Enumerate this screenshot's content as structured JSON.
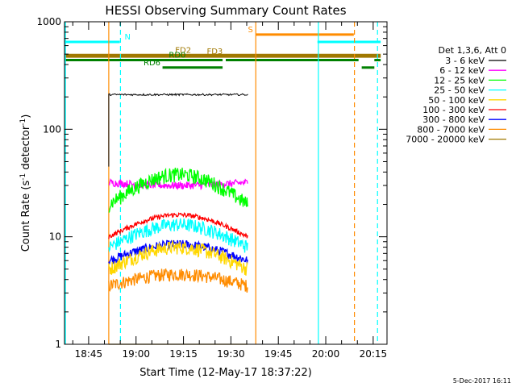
{
  "chart_data": {
    "type": "line",
    "title": "HESSI Observing Summary Count Rates",
    "xlabel": "Start Time (12-May-17 18:37:22)",
    "ylabel_main": "Count Rate (s",
    "ylabel_sup1": "-1",
    "ylabel_mid": " detector",
    "ylabel_sup2": "-1",
    "ylabel_end": ")",
    "y_scale": "log",
    "ylim": [
      1,
      1000
    ],
    "xlim_minutes": [
      0,
      102
    ],
    "x_ticks": [
      {
        "label": "18:45",
        "min": 7.63
      },
      {
        "label": "19:00",
        "min": 22.63
      },
      {
        "label": "19:15",
        "min": 37.63
      },
      {
        "label": "19:30",
        "min": 52.63
      },
      {
        "label": "19:45",
        "min": 67.63
      },
      {
        "label": "20:00",
        "min": 82.63
      },
      {
        "label": "20:15",
        "min": 97.63
      }
    ],
    "y_ticks": [
      {
        "label": "1",
        "value": 1
      },
      {
        "label": "10",
        "value": 10
      },
      {
        "label": "100",
        "value": 100
      },
      {
        "label": "1000",
        "value": 1000
      }
    ],
    "legend_title": "Det 1,3,6, Att 0",
    "legend_position": "right",
    "series": [
      {
        "name": "3 - 6 keV",
        "color": "#000000",
        "start": 14,
        "end": 58,
        "start_value": 45,
        "level": 210,
        "noise": 0.04
      },
      {
        "name": "6 - 12 keV",
        "color": "#ff00ff",
        "start": 14,
        "end": 58,
        "start_value": 32,
        "end_value": 24,
        "peak": 30,
        "noise": 0.08
      },
      {
        "name": "12 - 25 keV",
        "color": "#00ff00",
        "start": 14,
        "end": 58,
        "start_value": 20,
        "end_value": 20,
        "peak": 38,
        "noise": 0.16
      },
      {
        "name": "25 - 50 keV",
        "color": "#00ffff",
        "start": 14,
        "end": 58,
        "start_value": 8,
        "end_value": 8,
        "peak": 13,
        "noise": 0.15
      },
      {
        "name": "50 - 100 keV",
        "color": "#ffd700",
        "start": 14,
        "end": 58,
        "start_value": 5,
        "end_value": 5,
        "peak": 8,
        "noise": 0.15
      },
      {
        "name": "100 - 300 keV",
        "color": "#ff0000",
        "start": 14,
        "end": 58,
        "start_value": 10,
        "end_value": 10,
        "peak": 16,
        "noise": 0.05
      },
      {
        "name": "300 - 800 keV",
        "color": "#0000ff",
        "start": 14,
        "end": 58,
        "start_value": 6,
        "end_value": 6,
        "peak": 8.5,
        "noise": 0.1
      },
      {
        "name": "800 - 7000 keV",
        "color": "#ff8c00",
        "start": 14,
        "end": 58,
        "start_value": 3.5,
        "end_value": 3.5,
        "peak": 4.5,
        "noise": 0.14
      },
      {
        "name": "7000 - 20000 keV",
        "color": "#a07800",
        "start": 14,
        "end": 58,
        "start_value": 1,
        "end_value": 1,
        "peak": 1,
        "noise": 0
      }
    ],
    "flag_bars": [
      {
        "label": "N",
        "color": "#00ffff",
        "value": 650,
        "segments": [
          [
            0,
            17.5
          ],
          [
            80,
            100
          ]
        ],
        "label_at": 19
      },
      {
        "label": "S",
        "color": "#ff8c00",
        "value": 760,
        "segments": [
          [
            60.5,
            91.5
          ]
        ],
        "label_at": 58
      },
      {
        "label": "FD2",
        "color": "#a07800",
        "value": 490,
        "segments": [
          [
            0,
            100
          ]
        ],
        "label_at": 35
      },
      {
        "label": "FD3",
        "color": "#a07800",
        "value": 475,
        "segments": [
          [
            0,
            100
          ]
        ],
        "label_at": 45
      },
      {
        "label": "RD0",
        "color": "#008000",
        "value": 440,
        "segments": [
          [
            0,
            50
          ],
          [
            51,
            93
          ],
          [
            98,
            100
          ]
        ],
        "label_at": 33
      },
      {
        "label": "RD6",
        "color": "#008000",
        "value": 375,
        "segments": [
          [
            31,
            50
          ],
          [
            94,
            98
          ]
        ],
        "label_at": 25
      }
    ],
    "vertical_lines": [
      {
        "min": 0.3,
        "color": "#00ffff",
        "style": "solid"
      },
      {
        "min": 17.7,
        "color": "#00ffff",
        "style": "dashed"
      },
      {
        "min": 60.5,
        "color": "#ff8c00",
        "style": "solid"
      },
      {
        "min": 80.3,
        "color": "#00ffff",
        "style": "solid"
      },
      {
        "min": 91.7,
        "color": "#ff8c00",
        "style": "dashed"
      },
      {
        "min": 99,
        "color": "#00ffff",
        "style": "dashed"
      },
      {
        "min": 14,
        "color": "#ff8c00",
        "style": "solid"
      }
    ],
    "timestamp": "5-Dec-2017 16:11"
  }
}
